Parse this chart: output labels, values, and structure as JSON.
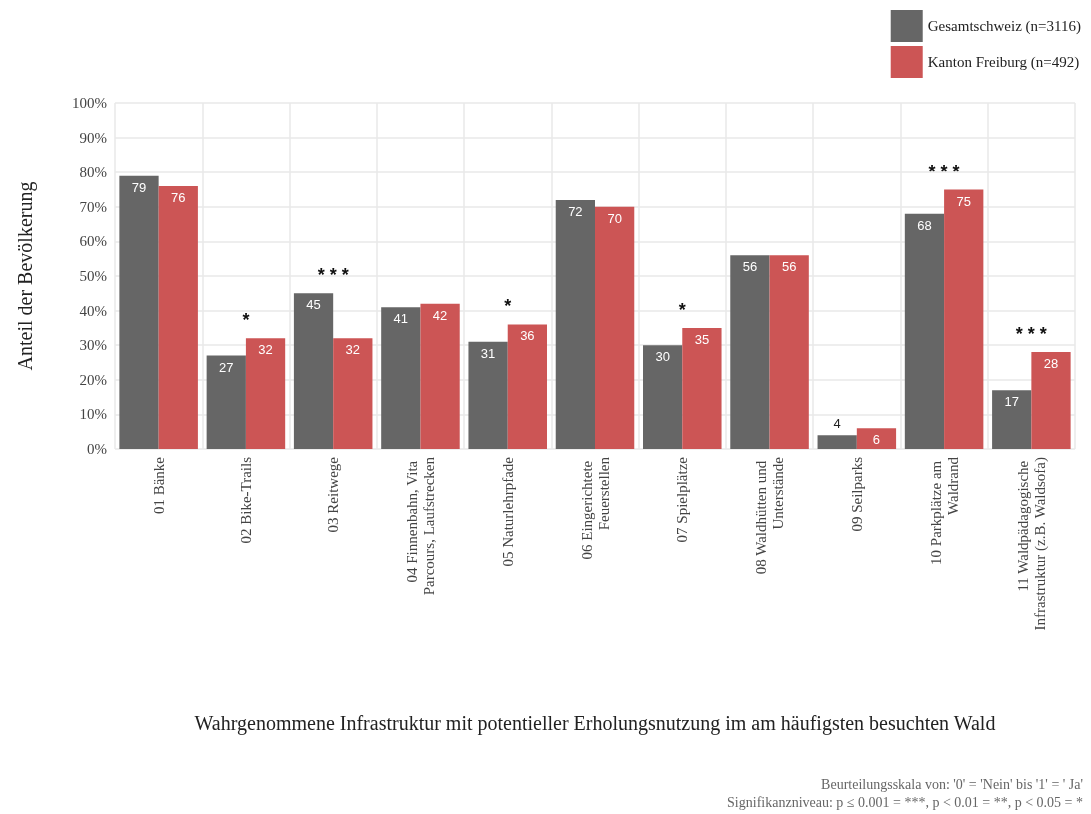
{
  "chart_data": {
    "type": "bar",
    "xlabel": "Wahrgenommene Infrastruktur mit potentieller Erholungsnutzung im am häufigsten besuchten Wald",
    "ylabel": "Anteil der Bevölkerung",
    "categories": [
      "01 Bänke",
      "02 Bike-Trails",
      "03 Reitwege",
      "04 Finnenbahn, Vita Parcours, Laufstrecken",
      "05 Naturlehrpfade",
      "06 Eingerichtete Feuerstellen",
      "07 Spielplätze",
      "08 Waldhütten und Unterstände",
      "09 Seilparks",
      "10 Parkplätze am Waldrand",
      "11 Waldpädagogische Infrastruktur (z.B. Waldsofa)"
    ],
    "series": [
      {
        "name": "Gesamtschweiz (n=3116)",
        "color": "#666666",
        "values": [
          79,
          27,
          45,
          41,
          31,
          72,
          30,
          56,
          4,
          68,
          17
        ]
      },
      {
        "name": "Kanton Freiburg (n=492)",
        "color": "#cc5555",
        "values": [
          76,
          32,
          32,
          42,
          36,
          70,
          35,
          56,
          6,
          75,
          28
        ]
      }
    ],
    "ylim": [
      0,
      100
    ],
    "yticks": [
      {
        "value": 0,
        "label": "0%"
      },
      {
        "value": 10,
        "label": "10%"
      },
      {
        "value": 20,
        "label": "20%"
      },
      {
        "value": 30,
        "label": "30%"
      },
      {
        "value": 40,
        "label": "40%"
      },
      {
        "value": 50,
        "label": "50%"
      },
      {
        "value": 60,
        "label": "60%"
      },
      {
        "value": 70,
        "label": "70%"
      },
      {
        "value": 80,
        "label": "80%"
      },
      {
        "value": 90,
        "label": "90%"
      },
      {
        "value": 100,
        "label": "100%"
      }
    ],
    "grid": true,
    "legend": "top right",
    "data_labels": true,
    "annotations": [
      {
        "text": "*",
        "x": "02 Bike-Trails",
        "y": 32
      },
      {
        "text": "* * *",
        "x": "03 Reitwege",
        "y": 45
      },
      {
        "text": "*",
        "x": "05 Naturlehrpfade",
        "y": 36
      },
      {
        "text": "*",
        "x": "07 Spielplätze",
        "y": 35
      },
      {
        "text": "* * *",
        "x": "10 Parkplätze am Waldrand",
        "y": 75
      },
      {
        "text": "* * *",
        "x": "11 Waldpädagogische Infrastruktur (z.B. Waldsofa)",
        "y": 28
      },
      "Beurteilungsskala von: '0' = 'Nein' bis '1' = ' Ja'",
      "Signifikanzniveau: p ≤ 0.001 = ***, p < 0.01 = **, p < 0.05 = *"
    ]
  }
}
